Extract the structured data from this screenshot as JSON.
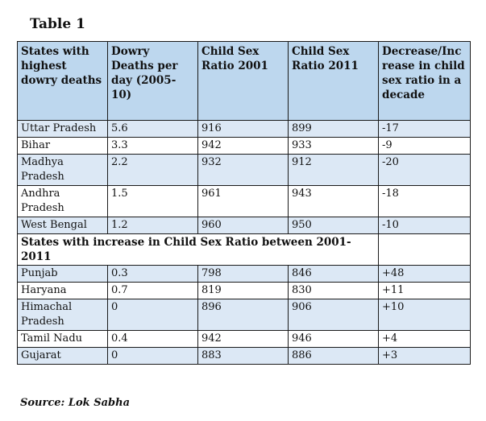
{
  "title": "Table 1",
  "headers": [
    "States with highest dowry deaths",
    "Dowry Deaths per day (2005-10)",
    "Child Sex Ratio 2001",
    "Child Sex Ratio 2011",
    "Decrease/Increase in child sex ratio in a decade"
  ],
  "section1_rows": [
    [
      "Uttar Pradesh",
      "5.6",
      "916",
      "899",
      "-17"
    ],
    [
      "Bihar",
      "3.3",
      "942",
      "933",
      "-9"
    ],
    [
      "Madhya Pradesh",
      "2.2",
      "932",
      "912",
      "-20"
    ],
    [
      "Andhra Pradesh",
      "1.5",
      "961",
      "943",
      "-18"
    ],
    [
      "West Bengal",
      "1.2",
      "960",
      "950",
      "-10"
    ]
  ],
  "section2_heading": "States with increase in Child Sex Ratio between 2001-2011",
  "section2_rows": [
    [
      "Punjab",
      "0.3",
      "798",
      "846",
      "+48"
    ],
    [
      "Haryana",
      "0.7",
      "819",
      "830",
      "+11"
    ],
    [
      "Himachal Pradesh",
      "0",
      "896",
      "906",
      "+10"
    ],
    [
      "Tamil Nadu",
      "0.4",
      "942",
      "946",
      "+4"
    ],
    [
      "Gujarat",
      "0",
      "883",
      "886",
      "+3"
    ]
  ],
  "source": "Source: Lok Sabha",
  "colors": {
    "header_bg": "#bdd7ee",
    "shaded_row_bg": "#dce8f5",
    "plain_row_bg": "#ffffff",
    "border": "#1a1a1a"
  }
}
